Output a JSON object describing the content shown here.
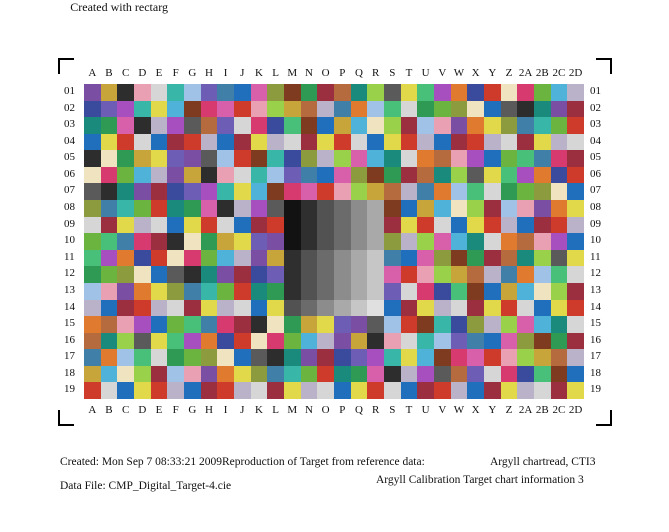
{
  "header": {
    "created_with": "Created with rectarg"
  },
  "columns": [
    "A",
    "B",
    "C",
    "D",
    "E",
    "F",
    "G",
    "H",
    "I",
    "J",
    "K",
    "L",
    "M",
    "N",
    "O",
    "P",
    "Q",
    "R",
    "S",
    "T",
    "U",
    "V",
    "W",
    "X",
    "Y",
    "Z",
    "2A",
    "2B",
    "2C",
    "2D"
  ],
  "rows": [
    "01",
    "02",
    "03",
    "04",
    "05",
    "06",
    "07",
    "08",
    "09",
    "10",
    "11",
    "12",
    "13",
    "14",
    "15",
    "16",
    "17",
    "18",
    "19"
  ],
  "palette": [
    "#7a4fa3",
    "#2e9a54",
    "#d63a6f",
    "#1f6fbd",
    "#e07a2f",
    "#38b7a8",
    "#5a5a5a",
    "#c8a53a",
    "#9b2f3f",
    "#6bb43f",
    "#d85fa9",
    "#3a4a9c",
    "#a0c2e6",
    "#e1d94a",
    "#2d2d2d",
    "#b66b3e",
    "#4fb3d9",
    "#8c9b3d",
    "#cf3b2b",
    "#6d5db5",
    "#49c07a",
    "#eaa0b3",
    "#1a8a7c",
    "#b9b2c9",
    "#7e3b1f",
    "#f0e3c0",
    "#3f7fa8",
    "#a84fc0",
    "#d6d6d6",
    "#9ad14a"
  ],
  "grays": [
    "#121212",
    "#2f2f2f",
    "#525252",
    "#6b6b6b",
    "#8c8c8c",
    "#a9a9a9",
    "#c6c6c6",
    "#e0e0e0"
  ],
  "footer": {
    "created": "Created: Mon Sep  7 08:33:21 2009",
    "data_file": "Data File: CMP_Digital_Target-4.cie",
    "reproduction": "Reproduction of Target from reference data:",
    "chartread": "Argyll chartread, CTI3",
    "calibration": "Argyll Calibration Target chart information 3"
  }
}
